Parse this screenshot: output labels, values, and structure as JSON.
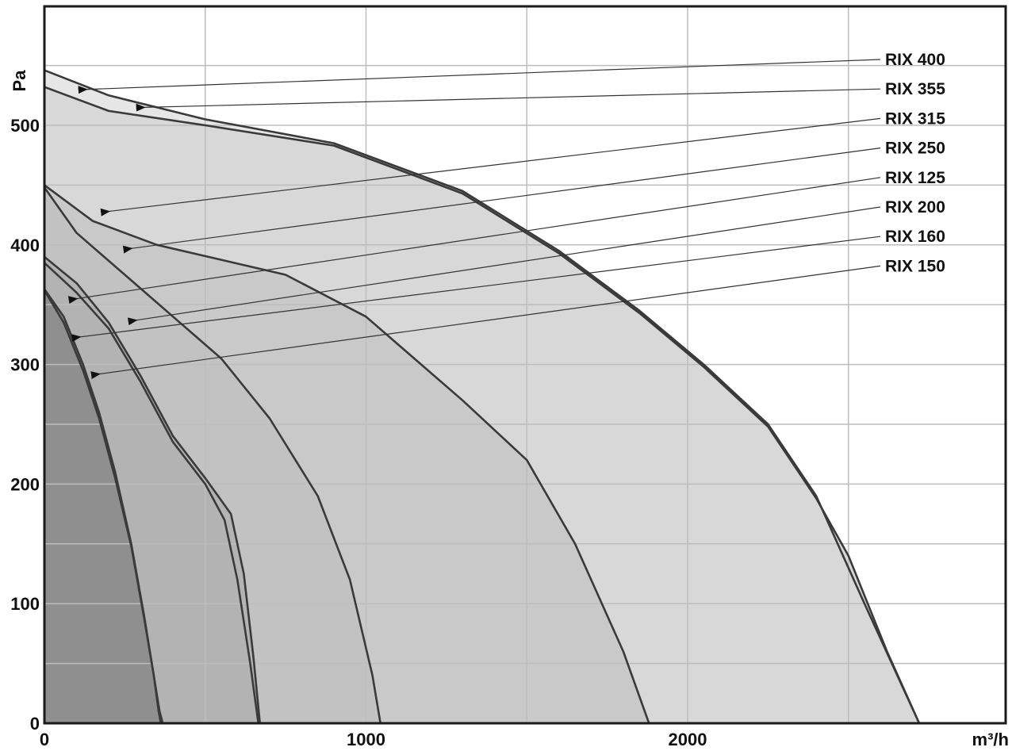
{
  "chart_data": {
    "type": "area",
    "title": "",
    "xlabel": "m³/h",
    "ylabel": "Pa",
    "xlim": [
      0,
      2700
    ],
    "ylim": [
      0,
      600
    ],
    "x_ticks": [
      "0",
      "1000",
      "2000"
    ],
    "x_tick_values": [
      0,
      1000,
      2000
    ],
    "y_ticks": [
      "0",
      "100",
      "200",
      "300",
      "400",
      "500"
    ],
    "y_tick_values": [
      0,
      100,
      200,
      300,
      400,
      500
    ],
    "grid": true,
    "legend": "right, callout labels with arrows",
    "colors": {
      "fill_dark": "#8f8f8f",
      "fill_mid": "#b7b7b7",
      "fill_light": "#c9c9c9",
      "fill_lighter": "#d8d8d8",
      "fill_lightest": "#e6e6e6",
      "line": "#3a3a3a",
      "grid": "#bdbdbd"
    },
    "series": [
      {
        "name": "RIX 400",
        "x": [
          0,
          200,
          500,
          900,
          1300,
          1600,
          1850,
          2050,
          2250,
          2400,
          2550,
          2720
        ],
        "y": [
          546,
          525,
          505,
          485,
          445,
          395,
          345,
          300,
          250,
          190,
          100,
          0
        ]
      },
      {
        "name": "RIX 355",
        "x": [
          0,
          200,
          500,
          900,
          1300,
          1600,
          1850,
          2050,
          2250,
          2400,
          2500,
          2620,
          2720
        ],
        "y": [
          532,
          512,
          500,
          483,
          443,
          393,
          343,
          298,
          248,
          188,
          140,
          60,
          0
        ]
      },
      {
        "name": "RIX 315",
        "x": [
          0,
          150,
          350,
          750,
          1000,
          1300,
          1500,
          1650,
          1800,
          1880
        ],
        "y": [
          450,
          420,
          400,
          375,
          340,
          270,
          220,
          150,
          60,
          0
        ]
      },
      {
        "name": "RIX 250",
        "x": [
          0,
          100,
          250,
          400,
          550,
          700,
          850,
          950,
          1020,
          1045
        ],
        "y": [
          448,
          410,
          375,
          340,
          305,
          255,
          190,
          120,
          40,
          0
        ]
      },
      {
        "name": "RIX 125",
        "x": [
          0,
          60,
          120,
          170,
          220,
          270,
          310,
          340,
          355,
          362
        ],
        "y": [
          363,
          340,
          300,
          260,
          210,
          150,
          90,
          40,
          10,
          0
        ]
      },
      {
        "name": "RIX 200",
        "x": [
          0,
          100,
          200,
          300,
          400,
          500,
          560,
          600,
          640,
          665
        ],
        "y": [
          385,
          360,
          330,
          285,
          235,
          200,
          170,
          120,
          50,
          0
        ]
      },
      {
        "name": "RIX 160",
        "x": [
          0,
          100,
          200,
          300,
          400,
          500,
          580,
          620,
          650,
          670
        ],
        "y": [
          390,
          368,
          335,
          290,
          240,
          205,
          175,
          125,
          55,
          0
        ]
      },
      {
        "name": "RIX 150",
        "x": [
          0,
          60,
          120,
          170,
          220,
          270,
          310,
          340,
          358,
          368
        ],
        "y": [
          362,
          335,
          295,
          255,
          205,
          148,
          88,
          40,
          10,
          0
        ]
      }
    ]
  }
}
